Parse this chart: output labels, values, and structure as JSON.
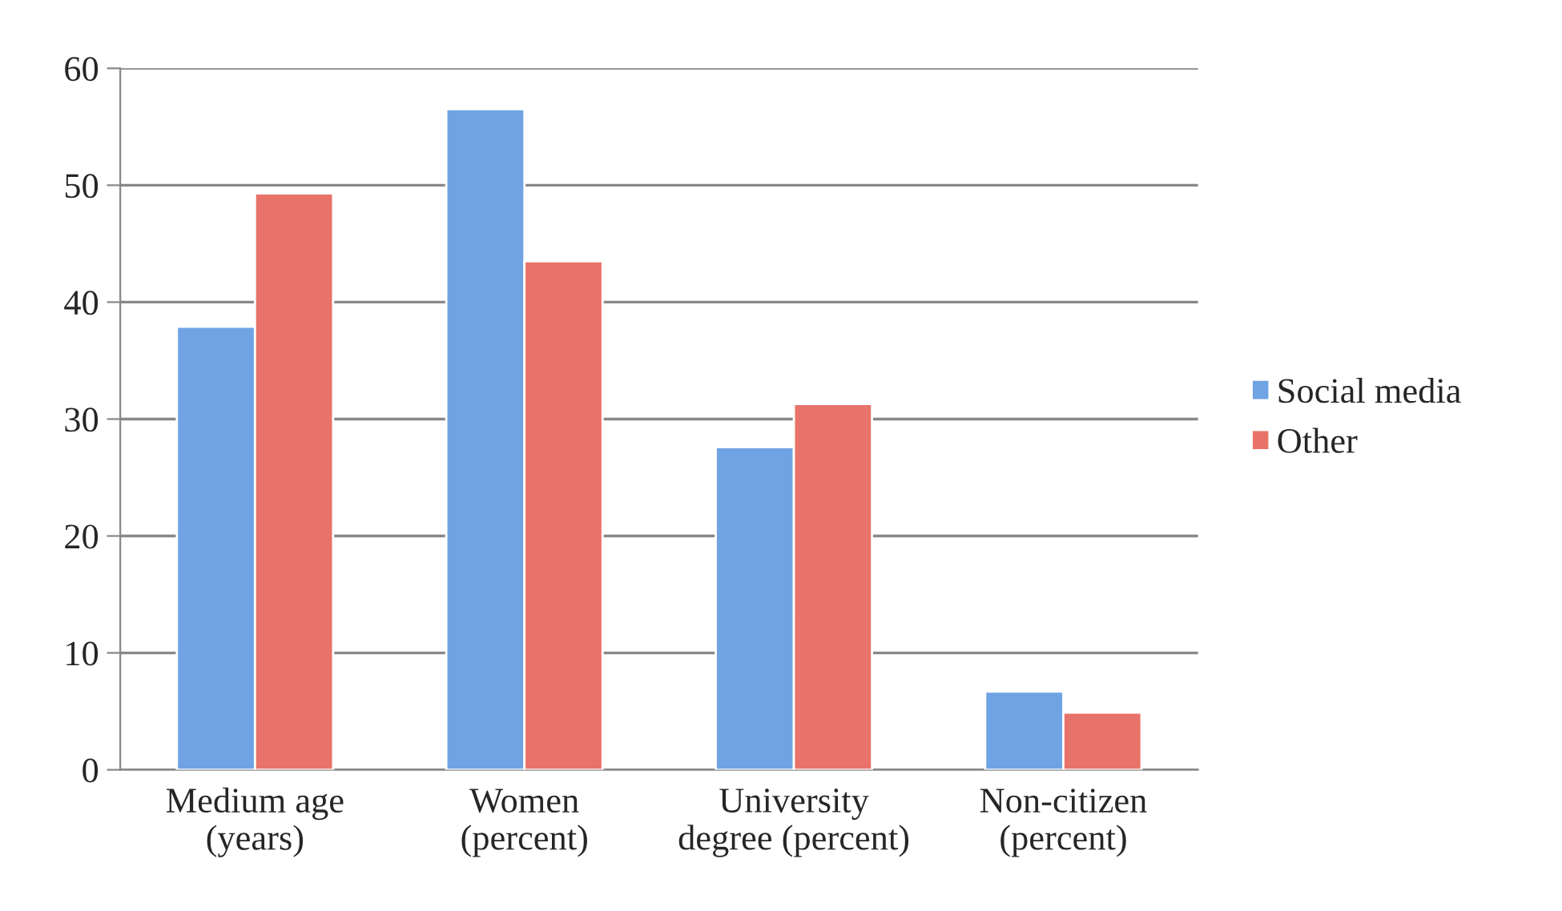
{
  "chart_data": {
    "type": "bar",
    "categories": [
      "Medium age\n(years)",
      "Women\n(percent)",
      "University\ndegree (percent)",
      "Non-citizen\n(percent)"
    ],
    "series": [
      {
        "name": "Social media",
        "color": "#6fa3e3",
        "values": [
          37.9,
          56.5,
          27.6,
          6.7
        ]
      },
      {
        "name": "Other",
        "color": "#e8736a",
        "values": [
          49.3,
          43.5,
          31.3,
          4.9
        ]
      }
    ],
    "ylim": [
      0,
      60
    ],
    "yticks": [
      0,
      10,
      20,
      30,
      40,
      50,
      60
    ],
    "grid": "y",
    "legend": "right"
  }
}
